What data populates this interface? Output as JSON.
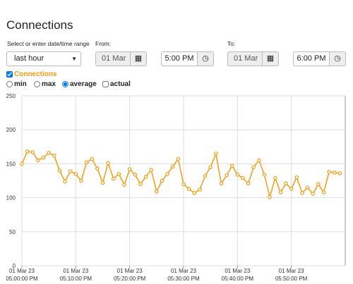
{
  "header": {
    "title": "Connections"
  },
  "range": {
    "label": "Select or enter date/time range",
    "preset": "last hour",
    "from_label": "From:",
    "from_date": "01 Mar :",
    "from_time": "5:00 PM",
    "to_label": "To:",
    "to_date": "01 Mar :",
    "to_time": "6:00 PM"
  },
  "options": {
    "series_toggle": "Connections",
    "modes": [
      "min",
      "max",
      "average",
      "actual"
    ]
  },
  "chart_data": {
    "type": "line",
    "x": [
      "05:00:00 PM",
      "05:01:00 PM",
      "05:02:00 PM",
      "05:03:00 PM",
      "05:04:00 PM",
      "05:05:00 PM",
      "05:06:00 PM",
      "05:07:00 PM",
      "05:08:00 PM",
      "05:09:00 PM",
      "05:10:00 PM",
      "05:11:00 PM",
      "05:12:00 PM",
      "05:13:00 PM",
      "05:14:00 PM",
      "05:15:00 PM",
      "05:16:00 PM",
      "05:17:00 PM",
      "05:18:00 PM",
      "05:19:00 PM",
      "05:20:00 PM",
      "05:21:00 PM",
      "05:22:00 PM",
      "05:23:00 PM",
      "05:24:00 PM",
      "05:25:00 PM",
      "05:26:00 PM",
      "05:27:00 PM",
      "05:28:00 PM",
      "05:29:00 PM",
      "05:30:00 PM",
      "05:31:00 PM",
      "05:32:00 PM",
      "05:33:00 PM",
      "05:34:00 PM",
      "05:35:00 PM",
      "05:36:00 PM",
      "05:37:00 PM",
      "05:38:00 PM",
      "05:39:00 PM",
      "05:40:00 PM",
      "05:41:00 PM",
      "05:42:00 PM",
      "05:43:00 PM",
      "05:44:00 PM",
      "05:45:00 PM",
      "05:46:00 PM",
      "05:47:00 PM",
      "05:48:00 PM",
      "05:49:00 PM",
      "05:50:00 PM",
      "05:51:00 PM",
      "05:52:00 PM",
      "05:53:00 PM",
      "05:54:00 PM",
      "05:55:00 PM",
      "05:56:00 PM",
      "05:57:00 PM",
      "05:58:00 PM",
      "05:59:00 PM"
    ],
    "series": [
      {
        "name": "Connections",
        "color": "#f39c12",
        "values": [
          150,
          168,
          167,
          155,
          159,
          166,
          162,
          140,
          124,
          139,
          135,
          125,
          152,
          157,
          143,
          122,
          151,
          128,
          135,
          119,
          142,
          134,
          120,
          131,
          141,
          109,
          125,
          135,
          146,
          157,
          120,
          113,
          107,
          112,
          132,
          145,
          165,
          121,
          133,
          147,
          134,
          129,
          121,
          145,
          155,
          134,
          101,
          129,
          108,
          121,
          113,
          130,
          107,
          115,
          106,
          120,
          108,
          138,
          137,
          136
        ]
      }
    ],
    "xlim": [
      "05:00:00 PM",
      "06:00:00 PM"
    ],
    "xticks": [
      {
        "value": "05:00:00 PM",
        "label": "01 Mar 23 05:00:00 PM"
      },
      {
        "value": "05:10:00 PM",
        "label": "01 Mar 23 05:10:00 PM"
      },
      {
        "value": "05:20:00 PM",
        "label": "01 Mar 23 05:20:00 PM"
      },
      {
        "value": "05:30:00 PM",
        "label": "01 Mar 23 05:30:00 PM"
      },
      {
        "value": "05:40:00 PM",
        "label": "01 Mar 23 05:40:00 PM"
      },
      {
        "value": "05:50:00 PM",
        "label": "01 Mar 23 05:50:00 PM"
      }
    ],
    "ylim": [
      0,
      250
    ],
    "yticks": [
      0,
      50,
      100,
      150,
      200,
      250
    ],
    "grid": true
  }
}
